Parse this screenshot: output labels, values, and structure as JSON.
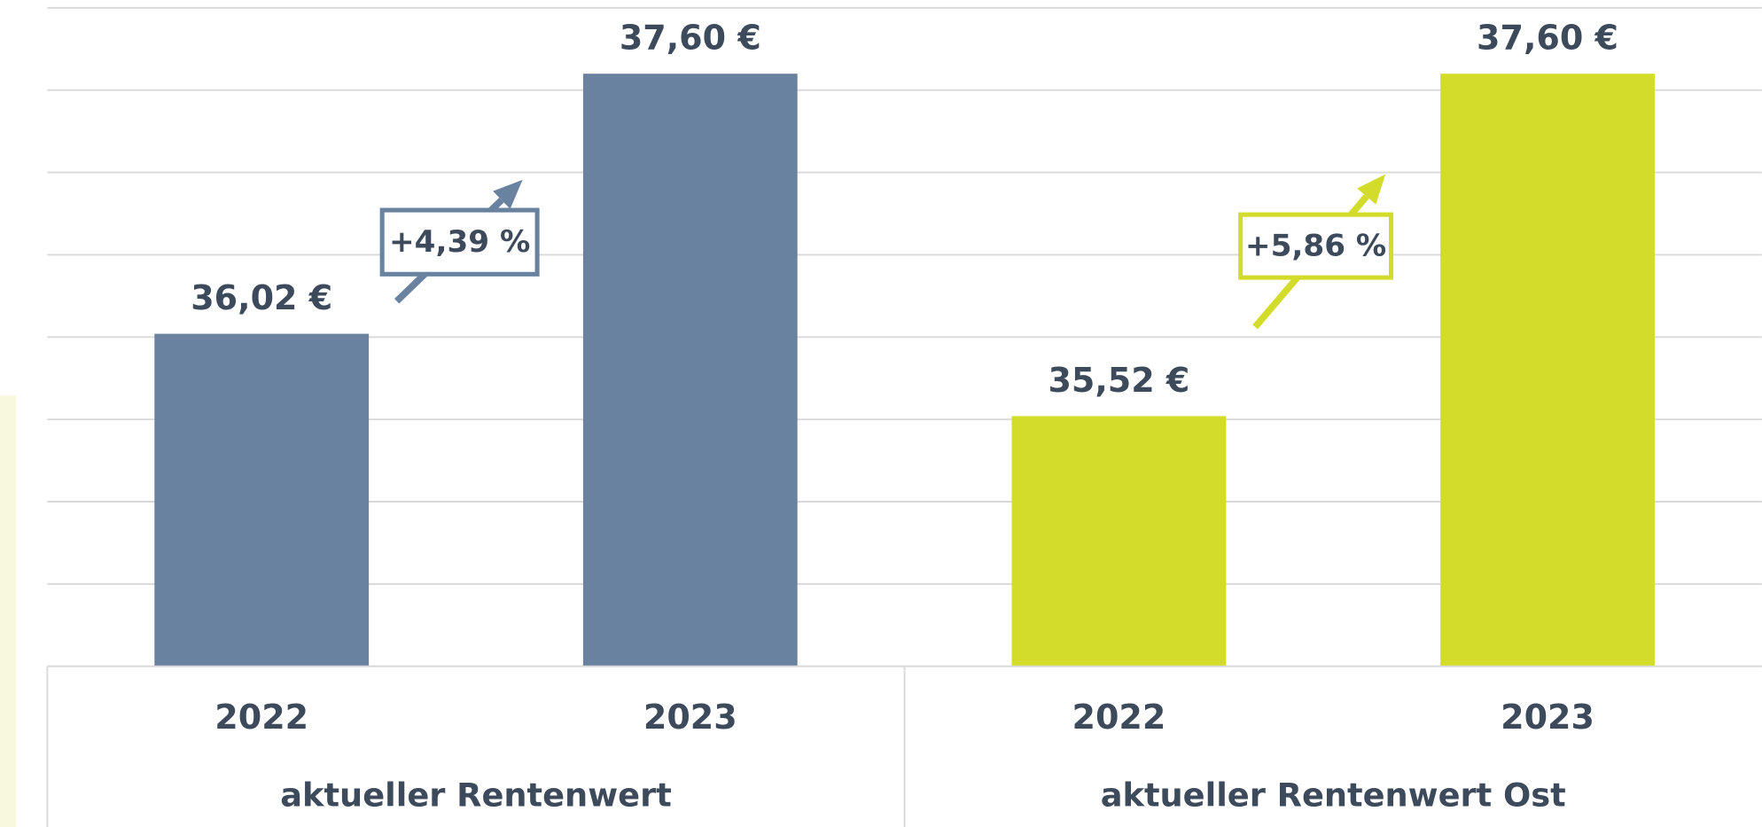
{
  "chart_data": {
    "type": "bar",
    "ylim": [
      34,
      38
    ],
    "yticks": [
      34,
      34.5,
      35,
      35.5,
      36,
      36.5,
      37,
      37.5,
      38
    ],
    "grid": true,
    "groups": [
      {
        "label": "aktueller Rentenwert",
        "color": "#6882a0",
        "categories": [
          "2022",
          "2023"
        ],
        "values": [
          36.02,
          37.6
        ],
        "value_labels": [
          "36,02 €",
          "37,60 €"
        ],
        "change_label": "+4,39 %"
      },
      {
        "label": "aktueller Rentenwert Ost",
        "color": "#d4dc2b",
        "categories": [
          "2022",
          "2023"
        ],
        "values": [
          35.52,
          37.6
        ],
        "value_labels": [
          "35,52 €",
          "37,60 €"
        ],
        "change_label": "+5,86 %"
      }
    ]
  }
}
